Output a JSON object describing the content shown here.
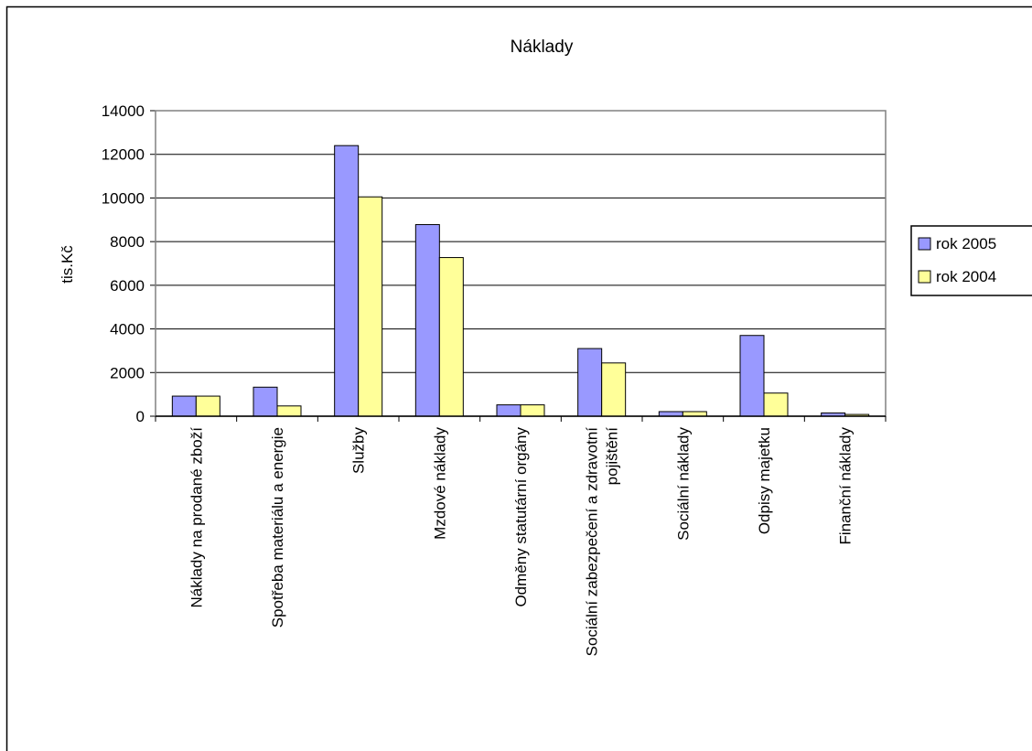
{
  "chart_data": {
    "type": "bar",
    "title": "Náklady",
    "xlabel": "",
    "ylabel": "tis.Kč",
    "ylim": [
      0,
      14000
    ],
    "yticks": [
      0,
      2000,
      4000,
      6000,
      8000,
      10000,
      12000,
      14000
    ],
    "grid": true,
    "legend_position": "right",
    "categories": [
      "Náklady na prodané zboží",
      "Spotřeba materiálu a energie",
      "Služby",
      "Mzdové náklady",
      "Odměny statutární orgány",
      "Sociální zabezpečení a zdravotní pojištění",
      "Sociální náklady",
      "Odpisy majetku",
      "Finanční náklady"
    ],
    "category_lines": [
      [
        "Náklady na prodané zboží"
      ],
      [
        "Spotřeba materiálu a energie"
      ],
      [
        "Služby"
      ],
      [
        "Mzdové náklady"
      ],
      [
        "Odměny statutární orgány"
      ],
      [
        "Sociální zabezpečení a zdravotní",
        "pojištění"
      ],
      [
        "Sociální náklady"
      ],
      [
        "Odpisy majetku"
      ],
      [
        "Finanční náklady"
      ]
    ],
    "series": [
      {
        "name": "rok 2005",
        "color": "#9999ff",
        "values": [
          920,
          1330,
          12400,
          8780,
          520,
          3100,
          210,
          3700,
          150
        ]
      },
      {
        "name": "rok 2004",
        "color": "#ffff99",
        "values": [
          920,
          470,
          10050,
          7270,
          520,
          2440,
          210,
          1060,
          80
        ]
      }
    ]
  }
}
